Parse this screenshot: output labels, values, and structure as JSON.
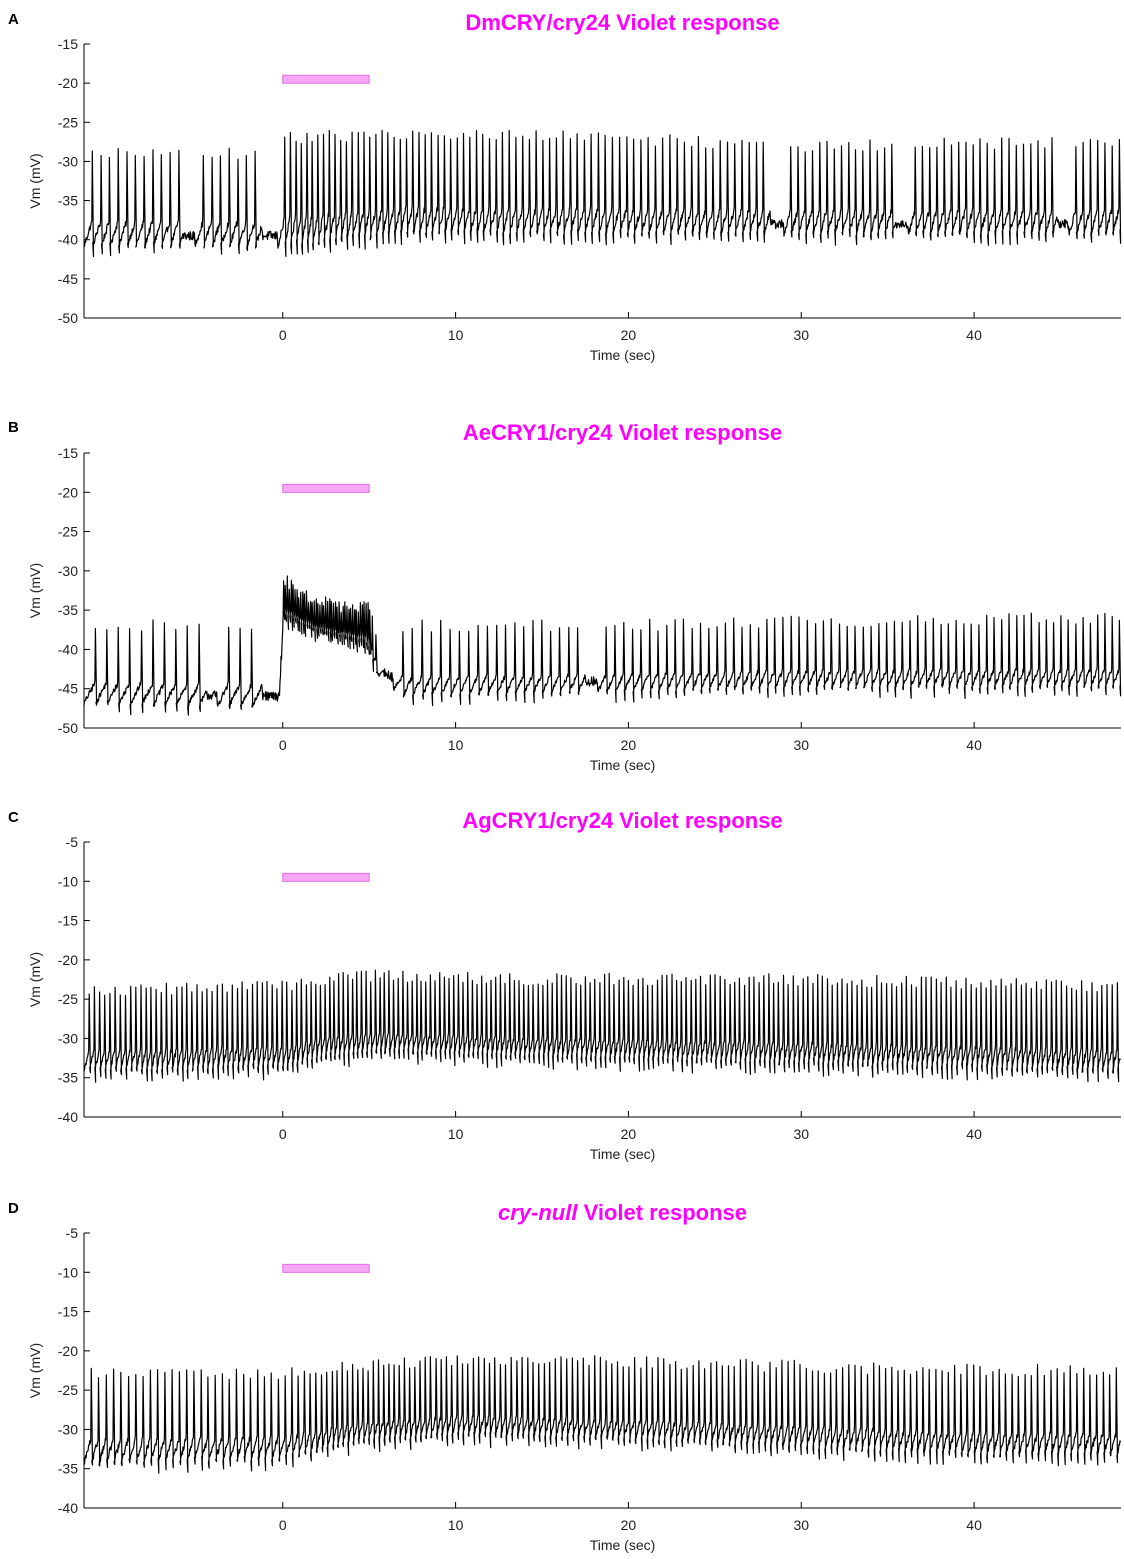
{
  "colors": {
    "title": "#ff00ff",
    "stimulus_fill": "#f6a8f6",
    "stimulus_edge": "#e070e0",
    "trace": "#000000",
    "axis": "#000000"
  },
  "chart_data": [
    {
      "panel_letter": "A",
      "type": "line",
      "title": "DmCRY/cry24 Violet response",
      "title_parts": [
        {
          "text": "DmCRY/cry24 Violet response",
          "italic": false
        }
      ],
      "xlabel": "Time (sec)",
      "ylabel": "Vm (mV)",
      "xlim": [
        -11.5,
        48.5
      ],
      "ylim": [
        -50,
        -15
      ],
      "xticks": [
        0,
        10,
        20,
        30,
        40
      ],
      "yticks": [
        -50,
        -45,
        -40,
        -35,
        -30,
        -25,
        -20,
        -15
      ],
      "grid": false,
      "stimulus": {
        "start": 0,
        "end": 5,
        "level": -19.5
      },
      "trace": {
        "t_start": -11.5,
        "t_end": 48.5,
        "spike_peak": [
          [
            -11.5,
            -29
          ],
          [
            -1,
            -29
          ],
          [
            0.5,
            -27
          ],
          [
            7,
            -26.5
          ],
          [
            18,
            -27
          ],
          [
            30,
            -28
          ],
          [
            48,
            -27.5
          ]
        ],
        "trough": [
          [
            -11.5,
            -41
          ],
          [
            -1,
            -41
          ],
          [
            0.5,
            -41
          ],
          [
            7,
            -39.5
          ],
          [
            18,
            -39.5
          ],
          [
            30,
            -39.5
          ],
          [
            48,
            -39.5
          ]
        ],
        "rate_hz": [
          [
            -11.5,
            2.0
          ],
          [
            -0.3,
            2.0
          ],
          [
            0.3,
            3.2
          ],
          [
            6.5,
            2.8
          ],
          [
            20,
            2.4
          ],
          [
            48.5,
            2.4
          ]
        ],
        "pauses": [
          [
            -5.8,
            -5.1
          ],
          [
            -1.2,
            -0.3
          ],
          [
            28.2,
            29
          ],
          [
            35.5,
            36.2
          ],
          [
            44.8,
            45.5
          ]
        ]
      }
    },
    {
      "panel_letter": "B",
      "type": "line",
      "title": "AeCRY1/cry24 Violet response",
      "title_parts": [
        {
          "text": "AeCRY1/cry24 Violet response",
          "italic": false
        }
      ],
      "xlabel": "Time (sec)",
      "ylabel": "Vm (mV)",
      "xlim": [
        -11.5,
        48.5
      ],
      "ylim": [
        -50,
        -15
      ],
      "xticks": [
        0,
        10,
        20,
        30,
        40
      ],
      "yticks": [
        -50,
        -45,
        -40,
        -35,
        -30,
        -25,
        -20,
        -15
      ],
      "grid": false,
      "stimulus": {
        "start": 0,
        "end": 5,
        "level": -19.5
      },
      "trace": {
        "t_start": -11.5,
        "t_end": 48.5,
        "spike_peak": [
          [
            -11.5,
            -37
          ],
          [
            -0.2,
            -37
          ],
          [
            0.05,
            -31
          ],
          [
            1,
            -33
          ],
          [
            3,
            -34.5
          ],
          [
            5,
            -34.5
          ],
          [
            5.4,
            -38
          ],
          [
            6.5,
            -37
          ],
          [
            20,
            -37
          ],
          [
            30,
            -36.5
          ],
          [
            48,
            -36
          ]
        ],
        "trough": [
          [
            -11.5,
            -47
          ],
          [
            -0.2,
            -47.5
          ],
          [
            0.05,
            -36
          ],
          [
            2,
            -38
          ],
          [
            4.8,
            -39.5
          ],
          [
            5.6,
            -44
          ],
          [
            7,
            -46
          ],
          [
            20,
            -45.5
          ],
          [
            30,
            -45
          ],
          [
            48,
            -45
          ]
        ],
        "rate_hz": [
          [
            -11.5,
            1.5
          ],
          [
            -0.2,
            1.5
          ],
          [
            0.0,
            9.0
          ],
          [
            5.0,
            9.0
          ],
          [
            5.5,
            1.5
          ],
          [
            6.5,
            1.8
          ],
          [
            20,
            2.0
          ],
          [
            48.5,
            2.4
          ]
        ],
        "pauses": [
          [
            -4.5,
            -3.8
          ],
          [
            -1.2,
            -0.1
          ],
          [
            5.8,
            6.4
          ],
          [
            17.5,
            18.2
          ]
        ]
      }
    },
    {
      "panel_letter": "C",
      "type": "line",
      "title": "AgCRY1/cry24 Violet response",
      "title_parts": [
        {
          "text": "AgCRY1/cry24 Violet response",
          "italic": false
        }
      ],
      "xlabel": "Time (sec)",
      "ylabel": "Vm (mV)",
      "xlim": [
        -11.5,
        48.5
      ],
      "ylim": [
        -40,
        -5
      ],
      "xticks": [
        0,
        10,
        20,
        30,
        40
      ],
      "yticks": [
        -40,
        -35,
        -30,
        -25,
        -20,
        -15,
        -10,
        -5
      ],
      "grid": false,
      "stimulus": {
        "start": 0,
        "end": 5,
        "level": -9.5
      },
      "trace": {
        "t_start": -11.5,
        "t_end": 48.5,
        "spike_peak": [
          [
            -11.5,
            -24
          ],
          [
            0,
            -23.5
          ],
          [
            2,
            -22.5
          ],
          [
            6,
            -22
          ],
          [
            12,
            -22.5
          ],
          [
            20,
            -22.5
          ],
          [
            30,
            -22.5
          ],
          [
            48,
            -23.5
          ]
        ],
        "trough": [
          [
            -11.5,
            -34.5
          ],
          [
            0,
            -34
          ],
          [
            3,
            -32.5
          ],
          [
            6,
            -32
          ],
          [
            12,
            -32.5
          ],
          [
            20,
            -33
          ],
          [
            30,
            -33.5
          ],
          [
            48,
            -34.5
          ]
        ],
        "rate_hz": [
          [
            -11.5,
            3.3
          ],
          [
            0,
            3.5
          ],
          [
            3,
            3.8
          ],
          [
            20,
            3.6
          ],
          [
            48.5,
            3.4
          ]
        ],
        "pauses": []
      }
    },
    {
      "panel_letter": "D",
      "type": "line",
      "title": "cry-null Violet response",
      "title_parts": [
        {
          "text": "cry-null",
          "italic": true
        },
        {
          "text": " Violet response",
          "italic": false
        }
      ],
      "xlabel": "Time (sec)",
      "ylabel": "Vm (mV)",
      "xlim": [
        -11.5,
        48.5
      ],
      "ylim": [
        -40,
        -5
      ],
      "xticks": [
        0,
        10,
        20,
        30,
        40
      ],
      "yticks": [
        -40,
        -35,
        -30,
        -25,
        -20,
        -15,
        -10,
        -5
      ],
      "grid": false,
      "stimulus": {
        "start": 0,
        "end": 5,
        "level": -9.5
      },
      "trace": {
        "t_start": -11.5,
        "t_end": 48.5,
        "spike_peak": [
          [
            -11.5,
            -23
          ],
          [
            0,
            -23
          ],
          [
            3,
            -22
          ],
          [
            8,
            -21.5
          ],
          [
            12,
            -21
          ],
          [
            20,
            -21.5
          ],
          [
            30,
            -22
          ],
          [
            40,
            -22.5
          ],
          [
            48,
            -22.5
          ]
        ],
        "trough": [
          [
            -11.5,
            -34.5
          ],
          [
            0,
            -34
          ],
          [
            4,
            -32
          ],
          [
            10,
            -31
          ],
          [
            20,
            -31.5
          ],
          [
            30,
            -32.5
          ],
          [
            40,
            -33.5
          ],
          [
            48,
            -33.5
          ]
        ],
        "rate_hz": [
          [
            -11.5,
            2.3
          ],
          [
            0,
            2.5
          ],
          [
            3,
            3.4
          ],
          [
            20,
            3.0
          ],
          [
            48.5,
            2.6
          ]
        ],
        "pauses": []
      }
    }
  ]
}
